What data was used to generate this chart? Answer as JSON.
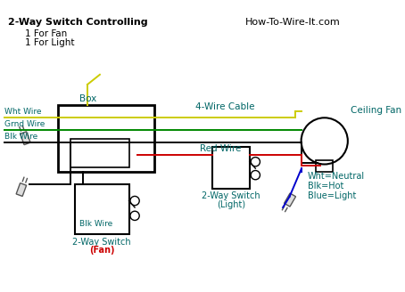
{
  "bg_color": "#ffffff",
  "title_text": "2-Way Switch Controlling",
  "subtitle1": "1 For Fan",
  "subtitle2": "1 For Light",
  "watermark": "How-To-Wire-It.com",
  "label_box": "Box",
  "label_cable": "4-Wire Cable",
  "label_ceiling_fan": "Ceiling Fan",
  "label_red_wire": "Red Wire",
  "label_switch_fan_line1": "2-Way Switch",
  "label_switch_fan_line2": "(Fan)",
  "label_switch_light_line1": "2-Way Switch",
  "label_switch_light_line2": "(Light)",
  "label_wht_wire": "Wht Wire",
  "label_grnd_wire": "Grnd Wire",
  "label_blk_wire1": "Blk Wire",
  "label_blk_wire2": "Blk Wire",
  "label_legend_line1": "Wht=Neutral",
  "label_legend_line2": "Blk=Hot",
  "label_legend_line3": "Blue=Light",
  "text_color": "#006666",
  "title_color": "#000000",
  "wire_yellow": "#cccc00",
  "wire_green": "#008800",
  "wire_black": "#000000",
  "wire_red": "#cc0000",
  "wire_blue": "#0000cc",
  "box_color": "#000000"
}
